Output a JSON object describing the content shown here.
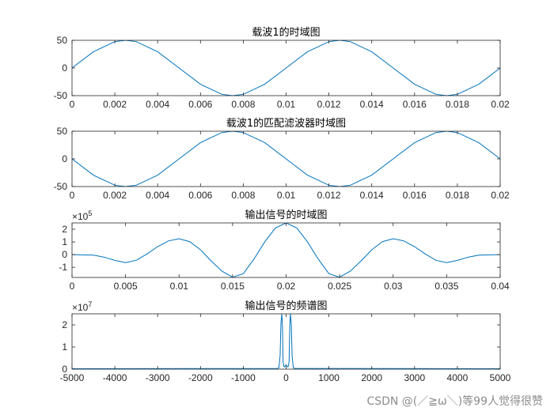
{
  "watermark": "CSDN @(／≧ω＼)等99人觉得很赞",
  "colors": {
    "line": "#0072BD",
    "axis": "#262626",
    "text": "#262626"
  },
  "chart_data": [
    {
      "type": "line",
      "title": "载波1的时域图",
      "xlim": [
        0,
        0.02
      ],
      "ylim": [
        -50,
        50
      ],
      "xticks": [
        "0",
        "0.002",
        "0.004",
        "0.006",
        "0.008",
        "0.01",
        "0.012",
        "0.014",
        "0.016",
        "0.018",
        "0.02"
      ],
      "xtick_values": [
        0,
        0.002,
        0.004,
        0.006,
        0.008,
        0.01,
        0.012,
        0.014,
        0.016,
        0.018,
        0.02
      ],
      "yticks": [
        "-50",
        "0",
        "50"
      ],
      "ytick_values": [
        -50,
        0,
        50
      ],
      "exponent": "",
      "series": [
        {
          "x": [
            0,
            0.001,
            0.002,
            0.0025,
            0.003,
            0.004,
            0.005,
            0.006,
            0.007,
            0.0075,
            0.008,
            0.009,
            0.01,
            0.011,
            0.012,
            0.0125,
            0.013,
            0.014,
            0.015,
            0.016,
            0.017,
            0.0175,
            0.018,
            0.019,
            0.02
          ],
          "y": [
            0,
            29.4,
            47.6,
            50,
            47.6,
            29.4,
            0,
            -29.4,
            -47.6,
            -50,
            -47.6,
            -29.4,
            0,
            29.4,
            47.6,
            50,
            47.6,
            29.4,
            0,
            -29.4,
            -47.6,
            -50,
            -47.6,
            -29.4,
            0
          ]
        }
      ]
    },
    {
      "type": "line",
      "title": "载波1的匹配滤波器时域图",
      "xlim": [
        0,
        0.02
      ],
      "ylim": [
        -50,
        50
      ],
      "xticks": [
        "0",
        "0.002",
        "0.004",
        "0.006",
        "0.008",
        "0.01",
        "0.012",
        "0.014",
        "0.016",
        "0.018",
        "0.02"
      ],
      "xtick_values": [
        0,
        0.002,
        0.004,
        0.006,
        0.008,
        0.01,
        0.012,
        0.014,
        0.016,
        0.018,
        0.02
      ],
      "yticks": [
        "-50",
        "0",
        "50"
      ],
      "ytick_values": [
        -50,
        0,
        50
      ],
      "exponent": "",
      "series": [
        {
          "x": [
            0,
            0.001,
            0.002,
            0.0025,
            0.003,
            0.004,
            0.005,
            0.006,
            0.007,
            0.0075,
            0.008,
            0.009,
            0.01,
            0.011,
            0.012,
            0.0125,
            0.013,
            0.014,
            0.015,
            0.016,
            0.017,
            0.0175,
            0.018,
            0.019,
            0.02
          ],
          "y": [
            0,
            -29.4,
            -47.6,
            -50,
            -47.6,
            -29.4,
            0,
            29.4,
            47.6,
            50,
            47.6,
            29.4,
            0,
            -29.4,
            -47.6,
            -50,
            -47.6,
            -29.4,
            0,
            29.4,
            47.6,
            50,
            47.6,
            29.4,
            0
          ]
        }
      ]
    },
    {
      "type": "line",
      "title": "输出信号的时域图",
      "xlim": [
        0,
        0.04
      ],
      "ylim": [
        -1.8,
        2.5
      ],
      "xticks": [
        "0",
        "0.005",
        "0.01",
        "0.015",
        "0.02",
        "0.025",
        "0.03",
        "0.035",
        "0.04"
      ],
      "xtick_values": [
        0,
        0.005,
        0.01,
        0.015,
        0.02,
        0.025,
        0.03,
        0.035,
        0.04
      ],
      "yticks": [
        "-1",
        "0",
        "1",
        "2"
      ],
      "ytick_values": [
        -1,
        0,
        1,
        2
      ],
      "exponent": "×10^5",
      "series": [
        {
          "x": [
            0,
            0.002,
            0.003,
            0.004,
            0.005,
            0.006,
            0.007,
            0.008,
            0.009,
            0.01,
            0.011,
            0.012,
            0.013,
            0.014,
            0.015,
            0.016,
            0.017,
            0.018,
            0.019,
            0.02,
            0.021,
            0.022,
            0.023,
            0.024,
            0.025,
            0.026,
            0.027,
            0.028,
            0.029,
            0.03,
            0.031,
            0.032,
            0.033,
            0.034,
            0.035,
            0.036,
            0.037,
            0.038,
            0.04
          ],
          "y": [
            0,
            -0.04,
            -0.2,
            -0.45,
            -0.63,
            -0.45,
            0.05,
            0.63,
            1.08,
            1.25,
            1.02,
            0.38,
            -0.5,
            -1.3,
            -1.78,
            -1.5,
            -0.35,
            1.0,
            2.1,
            2.5,
            2.1,
            1.0,
            -0.35,
            -1.5,
            -1.78,
            -1.3,
            -0.5,
            0.38,
            1.02,
            1.25,
            1.08,
            0.63,
            0.05,
            -0.45,
            -0.63,
            -0.45,
            -0.2,
            -0.04,
            0
          ]
        }
      ]
    },
    {
      "type": "line",
      "title": "输出信号的频谱图",
      "xlim": [
        -5000,
        5000
      ],
      "ylim": [
        0,
        2.5
      ],
      "xticks": [
        "-5000",
        "-4000",
        "-3000",
        "-2000",
        "-1000",
        "0",
        "1000",
        "2000",
        "3000",
        "4000",
        "5000"
      ],
      "xtick_values": [
        -5000,
        -4000,
        -3000,
        -2000,
        -1000,
        0,
        1000,
        2000,
        3000,
        4000,
        5000
      ],
      "yticks": [
        "0",
        "1",
        "2"
      ],
      "ytick_values": [
        0,
        1,
        2
      ],
      "exponent": "×10^7",
      "series": [
        {
          "x": [
            -5000,
            -220,
            -170,
            -140,
            -120,
            -100,
            -85,
            -70,
            -55,
            -40,
            0,
            40,
            55,
            70,
            85,
            100,
            120,
            140,
            170,
            220,
            5000
          ],
          "y": [
            0.02,
            0.03,
            0.05,
            0.6,
            2.1,
            2.5,
            1.9,
            0.35,
            0.15,
            0.1,
            0.2,
            0.1,
            0.15,
            0.35,
            1.9,
            2.5,
            2.1,
            0.6,
            0.05,
            0.03,
            0.02
          ]
        }
      ]
    }
  ]
}
